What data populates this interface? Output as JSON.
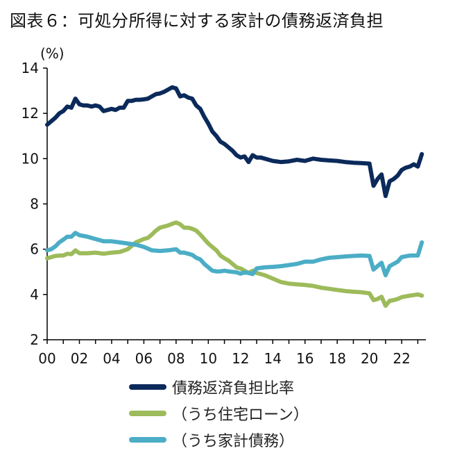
{
  "chart_data": {
    "type": "line",
    "title": "図表６：可処分所得に対する家計の債務返済負担",
    "ylabel_unit": "(%)",
    "xlabel": "",
    "ylim": [
      2,
      14
    ],
    "yticks": [
      "2",
      "4",
      "6",
      "8",
      "10",
      "12",
      "14"
    ],
    "xlim": [
      0,
      23.5
    ],
    "xticks": [
      "00",
      "02",
      "04",
      "06",
      "08",
      "10",
      "12",
      "14",
      "16",
      "18",
      "20",
      "22"
    ],
    "grid": false,
    "legend_position": "bottom",
    "series": [
      {
        "name": "債務返済負担比率",
        "color": "#0b2a5b",
        "x": [
          0,
          0.25,
          0.5,
          0.75,
          1.0,
          1.25,
          1.5,
          1.75,
          2.0,
          2.25,
          2.5,
          2.75,
          3.0,
          3.25,
          3.5,
          3.75,
          4.0,
          4.25,
          4.5,
          4.75,
          5.0,
          5.25,
          5.5,
          5.75,
          6.0,
          6.25,
          6.5,
          6.75,
          7.0,
          7.25,
          7.5,
          7.75,
          8.0,
          8.25,
          8.5,
          8.75,
          9.0,
          9.25,
          9.5,
          9.75,
          10.0,
          10.25,
          10.5,
          10.75,
          11.0,
          11.25,
          11.5,
          11.75,
          12.0,
          12.25,
          12.5,
          12.75,
          13.0,
          13.25,
          13.5,
          13.75,
          14.0,
          14.5,
          15.0,
          15.5,
          16.0,
          16.5,
          17.0,
          17.5,
          18.0,
          18.5,
          19.0,
          19.5,
          20.0,
          20.25,
          20.5,
          20.75,
          21.0,
          21.25,
          21.5,
          21.75,
          22.0,
          22.25,
          22.5,
          22.75,
          23.0,
          23.25
        ],
        "values": [
          11.5,
          11.65,
          11.8,
          12.0,
          12.1,
          12.3,
          12.25,
          12.65,
          12.4,
          12.35,
          12.35,
          12.3,
          12.35,
          12.3,
          12.1,
          12.15,
          12.2,
          12.15,
          12.25,
          12.25,
          12.55,
          12.55,
          12.6,
          12.6,
          12.62,
          12.65,
          12.75,
          12.85,
          12.88,
          12.95,
          13.05,
          13.15,
          13.1,
          12.75,
          12.8,
          12.7,
          12.65,
          12.35,
          12.2,
          11.85,
          11.55,
          11.2,
          11.0,
          10.75,
          10.65,
          10.5,
          10.35,
          10.15,
          10.05,
          10.1,
          9.85,
          10.15,
          10.05,
          10.05,
          10.0,
          9.95,
          9.9,
          9.85,
          9.88,
          9.95,
          9.9,
          10.0,
          9.95,
          9.92,
          9.9,
          9.85,
          9.82,
          9.8,
          9.78,
          8.8,
          9.1,
          9.3,
          8.35,
          9.0,
          9.1,
          9.25,
          9.5,
          9.6,
          9.65,
          9.75,
          9.65,
          10.2
        ]
      },
      {
        "name": "（うち住宅ローン）",
        "color": "#9dbb5b",
        "x": [
          0,
          0.25,
          0.5,
          0.75,
          1.0,
          1.25,
          1.5,
          1.75,
          2.0,
          2.5,
          3.0,
          3.5,
          4.0,
          4.5,
          5.0,
          5.5,
          6.0,
          6.25,
          6.5,
          6.75,
          7.0,
          7.25,
          7.5,
          7.75,
          8.0,
          8.25,
          8.5,
          8.75,
          9.0,
          9.25,
          9.5,
          9.75,
          10.0,
          10.25,
          10.5,
          10.75,
          11.0,
          11.25,
          11.5,
          11.75,
          12.0,
          12.25,
          12.5,
          12.75,
          13.0,
          13.5,
          14.0,
          14.5,
          15.0,
          15.5,
          16.0,
          16.5,
          17.0,
          17.5,
          18.0,
          18.5,
          19.0,
          19.5,
          20.0,
          20.25,
          20.5,
          20.75,
          21.0,
          21.25,
          21.5,
          21.75,
          22.0,
          22.5,
          23.0,
          23.25
        ],
        "values": [
          5.6,
          5.65,
          5.7,
          5.72,
          5.72,
          5.8,
          5.78,
          5.95,
          5.82,
          5.82,
          5.85,
          5.8,
          5.85,
          5.88,
          6.0,
          6.3,
          6.45,
          6.5,
          6.65,
          6.82,
          6.95,
          7.0,
          7.05,
          7.12,
          7.18,
          7.1,
          6.95,
          6.95,
          6.9,
          6.82,
          6.65,
          6.45,
          6.25,
          6.1,
          5.95,
          5.72,
          5.6,
          5.5,
          5.35,
          5.2,
          5.15,
          5.05,
          4.95,
          5.05,
          4.95,
          4.85,
          4.7,
          4.55,
          4.48,
          4.45,
          4.42,
          4.38,
          4.3,
          4.25,
          4.2,
          4.15,
          4.12,
          4.1,
          4.05,
          3.75,
          3.8,
          3.9,
          3.5,
          3.72,
          3.75,
          3.8,
          3.88,
          3.95,
          4.0,
          3.95
        ]
      },
      {
        "name": "（うち家計債務）",
        "color": "#4badc6",
        "x": [
          0,
          0.25,
          0.5,
          0.75,
          1.0,
          1.25,
          1.5,
          1.75,
          2.0,
          2.5,
          3.0,
          3.5,
          4.0,
          4.5,
          5.0,
          5.5,
          6.0,
          6.5,
          7.0,
          7.5,
          8.0,
          8.25,
          8.5,
          8.75,
          9.0,
          9.25,
          9.5,
          9.75,
          10.0,
          10.25,
          10.5,
          10.75,
          11.0,
          11.25,
          11.5,
          11.75,
          12.0,
          12.25,
          12.5,
          12.75,
          13.0,
          13.5,
          14.0,
          14.5,
          15.0,
          15.5,
          16.0,
          16.5,
          17.0,
          17.5,
          18.0,
          18.5,
          19.0,
          19.5,
          20.0,
          20.25,
          20.5,
          20.75,
          21.0,
          21.25,
          21.5,
          21.75,
          22.0,
          22.5,
          23.0,
          23.25
        ],
        "values": [
          5.95,
          6.0,
          6.12,
          6.3,
          6.42,
          6.55,
          6.55,
          6.72,
          6.62,
          6.55,
          6.45,
          6.35,
          6.35,
          6.3,
          6.25,
          6.2,
          6.1,
          5.95,
          5.92,
          5.95,
          6.0,
          5.85,
          5.85,
          5.8,
          5.75,
          5.62,
          5.55,
          5.35,
          5.2,
          5.05,
          5.02,
          5.02,
          5.05,
          5.02,
          5.0,
          4.98,
          4.92,
          4.98,
          4.95,
          4.9,
          5.15,
          5.2,
          5.22,
          5.25,
          5.3,
          5.35,
          5.45,
          5.45,
          5.55,
          5.62,
          5.65,
          5.68,
          5.7,
          5.72,
          5.7,
          5.1,
          5.25,
          5.4,
          4.85,
          5.25,
          5.35,
          5.45,
          5.65,
          5.72,
          5.72,
          6.3
        ]
      }
    ]
  }
}
